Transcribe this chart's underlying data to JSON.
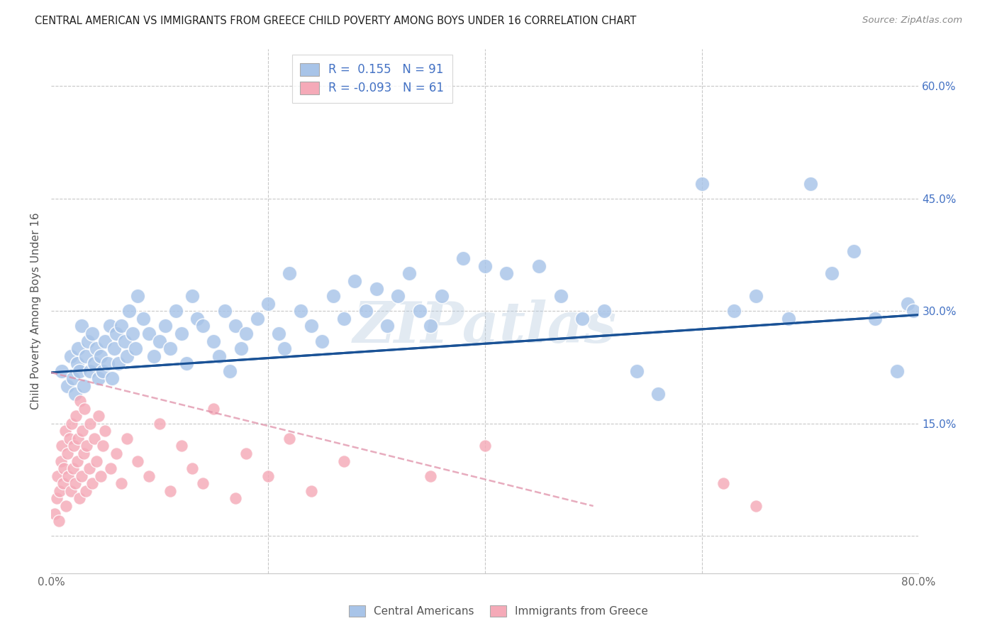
{
  "title": "CENTRAL AMERICAN VS IMMIGRANTS FROM GREECE CHILD POVERTY AMONG BOYS UNDER 16 CORRELATION CHART",
  "source": "Source: ZipAtlas.com",
  "ylabel": "Child Poverty Among Boys Under 16",
  "xlim": [
    0.0,
    0.8
  ],
  "ylim": [
    -0.05,
    0.65
  ],
  "blue_R": 0.155,
  "blue_N": 91,
  "pink_R": -0.093,
  "pink_N": 61,
  "blue_scatter_color": "#a8c4e8",
  "blue_line_color": "#1a5296",
  "pink_scatter_color": "#f5aab8",
  "pink_line_color": "#e090a8",
  "watermark": "ZIPatlas",
  "legend_label_blue": "Central Americans",
  "legend_label_pink": "Immigrants from Greece",
  "bg_color": "#ffffff",
  "grid_color": "#c8c8c8",
  "title_color": "#222222",
  "right_axis_color": "#4472c4",
  "ytick_positions": [
    0.0,
    0.15,
    0.3,
    0.45,
    0.6
  ],
  "ytick_labels": [
    "",
    "15.0%",
    "30.0%",
    "45.0%",
    "60.0%"
  ],
  "xtick_positions": [
    0.0,
    0.2,
    0.4,
    0.6,
    0.8
  ],
  "xtick_labels": [
    "0.0%",
    "",
    "",
    "",
    "80.0%"
  ],
  "blue_trend_x0": 0.0,
  "blue_trend_y0": 0.218,
  "blue_trend_x1": 0.8,
  "blue_trend_y1": 0.295,
  "pink_trend_x0": 0.0,
  "pink_trend_y0": 0.218,
  "pink_trend_x1": 0.5,
  "pink_trend_y1": 0.04,
  "blue_x": [
    0.01,
    0.015,
    0.018,
    0.02,
    0.022,
    0.024,
    0.025,
    0.026,
    0.028,
    0.03,
    0.032,
    0.034,
    0.036,
    0.038,
    0.04,
    0.042,
    0.044,
    0.046,
    0.048,
    0.05,
    0.052,
    0.054,
    0.056,
    0.058,
    0.06,
    0.062,
    0.065,
    0.068,
    0.07,
    0.072,
    0.075,
    0.078,
    0.08,
    0.085,
    0.09,
    0.095,
    0.1,
    0.105,
    0.11,
    0.115,
    0.12,
    0.125,
    0.13,
    0.135,
    0.14,
    0.15,
    0.155,
    0.16,
    0.165,
    0.17,
    0.175,
    0.18,
    0.19,
    0.2,
    0.21,
    0.215,
    0.22,
    0.23,
    0.24,
    0.25,
    0.26,
    0.27,
    0.28,
    0.29,
    0.3,
    0.31,
    0.32,
    0.33,
    0.34,
    0.35,
    0.36,
    0.38,
    0.4,
    0.42,
    0.45,
    0.47,
    0.49,
    0.51,
    0.54,
    0.56,
    0.6,
    0.63,
    0.65,
    0.68,
    0.7,
    0.72,
    0.74,
    0.76,
    0.78,
    0.79,
    0.795
  ],
  "blue_y": [
    0.22,
    0.2,
    0.24,
    0.21,
    0.19,
    0.23,
    0.25,
    0.22,
    0.28,
    0.2,
    0.24,
    0.26,
    0.22,
    0.27,
    0.23,
    0.25,
    0.21,
    0.24,
    0.22,
    0.26,
    0.23,
    0.28,
    0.21,
    0.25,
    0.27,
    0.23,
    0.28,
    0.26,
    0.24,
    0.3,
    0.27,
    0.25,
    0.32,
    0.29,
    0.27,
    0.24,
    0.26,
    0.28,
    0.25,
    0.3,
    0.27,
    0.23,
    0.32,
    0.29,
    0.28,
    0.26,
    0.24,
    0.3,
    0.22,
    0.28,
    0.25,
    0.27,
    0.29,
    0.31,
    0.27,
    0.25,
    0.35,
    0.3,
    0.28,
    0.26,
    0.32,
    0.29,
    0.34,
    0.3,
    0.33,
    0.28,
    0.32,
    0.35,
    0.3,
    0.28,
    0.32,
    0.37,
    0.36,
    0.35,
    0.36,
    0.32,
    0.29,
    0.3,
    0.22,
    0.19,
    0.47,
    0.3,
    0.32,
    0.29,
    0.47,
    0.35,
    0.38,
    0.29,
    0.22,
    0.31,
    0.3
  ],
  "pink_x": [
    0.003,
    0.005,
    0.006,
    0.007,
    0.008,
    0.009,
    0.01,
    0.011,
    0.012,
    0.013,
    0.014,
    0.015,
    0.016,
    0.017,
    0.018,
    0.019,
    0.02,
    0.021,
    0.022,
    0.023,
    0.024,
    0.025,
    0.026,
    0.027,
    0.028,
    0.029,
    0.03,
    0.031,
    0.032,
    0.033,
    0.035,
    0.036,
    0.038,
    0.04,
    0.042,
    0.044,
    0.046,
    0.048,
    0.05,
    0.055,
    0.06,
    0.065,
    0.07,
    0.08,
    0.09,
    0.1,
    0.11,
    0.12,
    0.13,
    0.14,
    0.15,
    0.17,
    0.18,
    0.2,
    0.22,
    0.24,
    0.27,
    0.35,
    0.4,
    0.62,
    0.65
  ],
  "pink_y": [
    0.03,
    0.05,
    0.08,
    0.02,
    0.06,
    0.1,
    0.12,
    0.07,
    0.09,
    0.14,
    0.04,
    0.11,
    0.08,
    0.13,
    0.06,
    0.15,
    0.09,
    0.12,
    0.07,
    0.16,
    0.1,
    0.13,
    0.05,
    0.18,
    0.08,
    0.14,
    0.11,
    0.17,
    0.06,
    0.12,
    0.09,
    0.15,
    0.07,
    0.13,
    0.1,
    0.16,
    0.08,
    0.12,
    0.14,
    0.09,
    0.11,
    0.07,
    0.13,
    0.1,
    0.08,
    0.15,
    0.06,
    0.12,
    0.09,
    0.07,
    0.17,
    0.05,
    0.11,
    0.08,
    0.13,
    0.06,
    0.1,
    0.08,
    0.12,
    0.07,
    0.04
  ]
}
